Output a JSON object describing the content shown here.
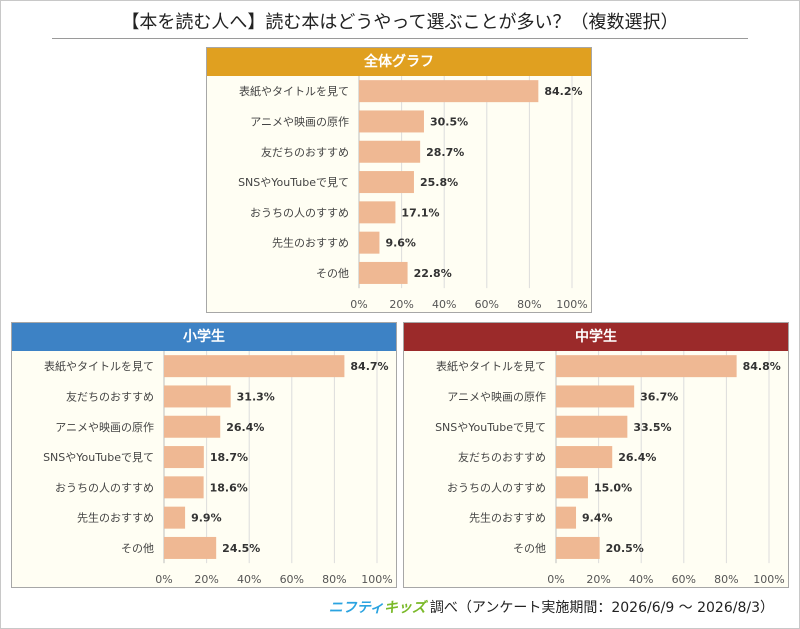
{
  "title": "【本を読む人へ】読む本はどうやって選ぶことが多い？（複数選択）",
  "footer": {
    "brand_part1": "ニフティ",
    "brand_part2": "キッズ",
    "survey_text": "調べ（アンケート実施期間：2026/6/9 ～ 2026/8/3）"
  },
  "colors": {
    "bar": "#efb893",
    "header_all": "#e0a020",
    "header_elementary": "#3d82c5",
    "header_junior": "#9b2a2a",
    "panel_bg": "#fffef3",
    "grid": "#dcdcdc"
  },
  "chart_data": [
    {
      "type": "bar",
      "orientation": "horizontal",
      "title": "全体グラフ",
      "categories": [
        "表紙やタイトルを見て",
        "アニメや映画の原作",
        "友だちのおすすめ",
        "SNSやYouTubeで見て",
        "おうちの人のすすめ",
        "先生のおすすめ",
        "その他"
      ],
      "values": [
        84.2,
        30.5,
        28.7,
        25.8,
        17.1,
        9.6,
        22.8
      ],
      "value_labels": [
        "84.2%",
        "30.5%",
        "28.7%",
        "25.8%",
        "17.1%",
        "9.6%",
        "22.8%"
      ],
      "xlim": [
        0,
        100
      ],
      "xticks": [
        "0%",
        "20%",
        "40%",
        "60%",
        "80%",
        "100%"
      ],
      "grid": true
    },
    {
      "type": "bar",
      "orientation": "horizontal",
      "title": "小学生",
      "categories": [
        "表紙やタイトルを見て",
        "友だちのおすすめ",
        "アニメや映画の原作",
        "SNSやYouTubeで見て",
        "おうちの人のすすめ",
        "先生のおすすめ",
        "その他"
      ],
      "values": [
        84.7,
        31.3,
        26.4,
        18.7,
        18.6,
        9.9,
        24.5
      ],
      "value_labels": [
        "84.7%",
        "31.3%",
        "26.4%",
        "18.7%",
        "18.6%",
        "9.9%",
        "24.5%"
      ],
      "xlim": [
        0,
        100
      ],
      "xticks": [
        "0%",
        "20%",
        "40%",
        "60%",
        "80%",
        "100%"
      ],
      "grid": true
    },
    {
      "type": "bar",
      "orientation": "horizontal",
      "title": "中学生",
      "categories": [
        "表紙やタイトルを見て",
        "アニメや映画の原作",
        "SNSやYouTubeで見て",
        "友だちのおすすめ",
        "おうちの人のすすめ",
        "先生のおすすめ",
        "その他"
      ],
      "values": [
        84.8,
        36.7,
        33.5,
        26.4,
        15.0,
        9.4,
        20.5
      ],
      "value_labels": [
        "84.8%",
        "36.7%",
        "33.5%",
        "26.4%",
        "15.0%",
        "9.4%",
        "20.5%"
      ],
      "xlim": [
        0,
        100
      ],
      "xticks": [
        "0%",
        "20%",
        "40%",
        "60%",
        "80%",
        "100%"
      ],
      "grid": true
    }
  ]
}
